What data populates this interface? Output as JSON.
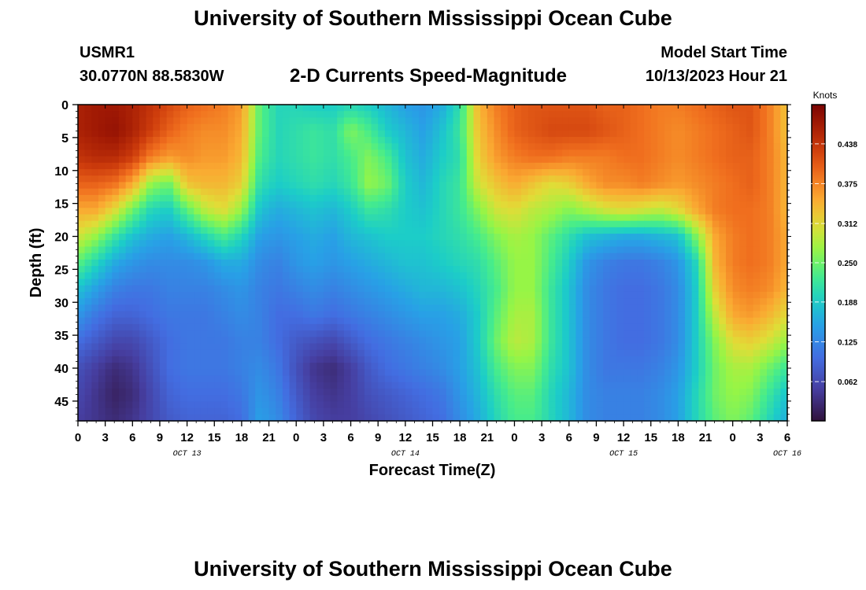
{
  "header": {
    "title": "University of Southern Mississippi Ocean Cube",
    "station_id": "USMR1",
    "station_coords": "30.0770N  88.5830W",
    "plot_title": "2-D Currents Speed-Magnitude",
    "start_label": "Model Start Time",
    "start_value": "10/13/2023 Hour 21"
  },
  "footer": {
    "title": "University of Southern Mississippi Ocean Cube"
  },
  "chart_data": {
    "type": "heatmap",
    "title": "2-D Currents Speed-Magnitude",
    "xlabel": "Forecast Time(Z)",
    "ylabel": "Depth (ft)",
    "colorbar_label": "Knots",
    "x_tick_labels": [
      "0",
      "3",
      "6",
      "9",
      "12",
      "15",
      "18",
      "21",
      "0",
      "3",
      "6",
      "9",
      "12",
      "15",
      "18",
      "21",
      "0",
      "3",
      "6",
      "9",
      "12",
      "15",
      "18",
      "21",
      "0",
      "3",
      "6"
    ],
    "date_labels": [
      {
        "label": "OCT 13",
        "hour": 12
      },
      {
        "label": "OCT 14",
        "hour": 36
      },
      {
        "label": "OCT 15",
        "hour": 60
      },
      {
        "label": "OCT 16",
        "hour": 78
      }
    ],
    "xlim_hours": [
      0,
      78
    ],
    "y_ticks": [
      0,
      5,
      10,
      15,
      20,
      25,
      30,
      35,
      40,
      45
    ],
    "ylim": [
      0,
      48
    ],
    "y_inverted": true,
    "colorbar_ticks": [
      "0.438",
      "0.375",
      "0.312",
      "0.250",
      "0.188",
      "0.125",
      "0.062"
    ],
    "color_range": [
      0,
      0.5
    ],
    "value_grid": {
      "depths_ft": [
        0,
        4,
        8,
        12,
        16,
        20,
        24,
        28,
        32,
        36,
        40,
        44,
        48
      ],
      "hours": [
        0,
        2,
        4,
        6,
        8,
        10,
        12,
        14,
        16,
        18,
        20,
        22,
        24,
        26,
        28,
        30,
        32,
        34,
        36,
        38,
        40,
        42,
        44,
        46,
        48,
        50,
        52,
        54,
        56,
        58,
        60,
        62,
        64,
        66,
        68,
        70,
        72,
        74,
        76,
        78
      ],
      "speeds_knots": [
        [
          0.46,
          0.47,
          0.47,
          0.46,
          0.44,
          0.42,
          0.4,
          0.39,
          0.38,
          0.36,
          0.24,
          0.2,
          0.2,
          0.19,
          0.19,
          0.2,
          0.19,
          0.17,
          0.15,
          0.14,
          0.16,
          0.21,
          0.34,
          0.38,
          0.4,
          0.41,
          0.41,
          0.41,
          0.41,
          0.4,
          0.4,
          0.39,
          0.38,
          0.38,
          0.39,
          0.4,
          0.41,
          0.41,
          0.38,
          0.33
        ],
        [
          0.46,
          0.47,
          0.48,
          0.46,
          0.43,
          0.4,
          0.38,
          0.37,
          0.37,
          0.35,
          0.24,
          0.2,
          0.21,
          0.22,
          0.21,
          0.26,
          0.23,
          0.19,
          0.17,
          0.15,
          0.18,
          0.22,
          0.33,
          0.37,
          0.4,
          0.41,
          0.42,
          0.42,
          0.42,
          0.41,
          0.4,
          0.39,
          0.38,
          0.37,
          0.38,
          0.39,
          0.4,
          0.41,
          0.38,
          0.33
        ],
        [
          0.44,
          0.45,
          0.45,
          0.43,
          0.38,
          0.36,
          0.37,
          0.36,
          0.36,
          0.34,
          0.23,
          0.2,
          0.21,
          0.22,
          0.21,
          0.23,
          0.26,
          0.23,
          0.18,
          0.16,
          0.19,
          0.21,
          0.32,
          0.36,
          0.38,
          0.39,
          0.39,
          0.38,
          0.38,
          0.38,
          0.39,
          0.39,
          0.38,
          0.37,
          0.38,
          0.39,
          0.4,
          0.4,
          0.38,
          0.34
        ],
        [
          0.4,
          0.4,
          0.39,
          0.35,
          0.27,
          0.25,
          0.33,
          0.34,
          0.34,
          0.32,
          0.21,
          0.19,
          0.2,
          0.21,
          0.2,
          0.22,
          0.27,
          0.25,
          0.19,
          0.17,
          0.2,
          0.22,
          0.3,
          0.33,
          0.35,
          0.33,
          0.31,
          0.32,
          0.35,
          0.37,
          0.37,
          0.38,
          0.37,
          0.36,
          0.37,
          0.38,
          0.39,
          0.4,
          0.38,
          0.34
        ],
        [
          0.35,
          0.35,
          0.31,
          0.25,
          0.2,
          0.19,
          0.24,
          0.29,
          0.31,
          0.27,
          0.18,
          0.16,
          0.17,
          0.18,
          0.17,
          0.19,
          0.22,
          0.21,
          0.19,
          0.18,
          0.2,
          0.22,
          0.26,
          0.3,
          0.31,
          0.29,
          0.28,
          0.26,
          0.28,
          0.3,
          0.31,
          0.3,
          0.29,
          0.31,
          0.35,
          0.38,
          0.39,
          0.39,
          0.38,
          0.34
        ],
        [
          0.3,
          0.27,
          0.22,
          0.18,
          0.16,
          0.15,
          0.17,
          0.2,
          0.23,
          0.2,
          0.15,
          0.14,
          0.15,
          0.16,
          0.15,
          0.17,
          0.18,
          0.19,
          0.19,
          0.19,
          0.2,
          0.21,
          0.23,
          0.26,
          0.28,
          0.27,
          0.24,
          0.21,
          0.18,
          0.17,
          0.16,
          0.16,
          0.17,
          0.18,
          0.26,
          0.35,
          0.38,
          0.39,
          0.38,
          0.35
        ],
        [
          0.24,
          0.2,
          0.16,
          0.14,
          0.13,
          0.13,
          0.13,
          0.14,
          0.16,
          0.16,
          0.13,
          0.12,
          0.14,
          0.15,
          0.14,
          0.15,
          0.16,
          0.17,
          0.18,
          0.18,
          0.19,
          0.2,
          0.21,
          0.24,
          0.27,
          0.27,
          0.23,
          0.19,
          0.14,
          0.12,
          0.11,
          0.11,
          0.12,
          0.14,
          0.2,
          0.34,
          0.38,
          0.39,
          0.38,
          0.35
        ],
        [
          0.18,
          0.15,
          0.12,
          0.11,
          0.11,
          0.12,
          0.12,
          0.12,
          0.13,
          0.14,
          0.12,
          0.11,
          0.12,
          0.13,
          0.12,
          0.13,
          0.14,
          0.15,
          0.16,
          0.17,
          0.17,
          0.18,
          0.2,
          0.23,
          0.27,
          0.27,
          0.22,
          0.18,
          0.13,
          0.11,
          0.1,
          0.1,
          0.11,
          0.13,
          0.19,
          0.32,
          0.37,
          0.38,
          0.37,
          0.34
        ],
        [
          0.14,
          0.11,
          0.09,
          0.09,
          0.1,
          0.11,
          0.11,
          0.11,
          0.12,
          0.13,
          0.12,
          0.1,
          0.1,
          0.11,
          0.1,
          0.11,
          0.12,
          0.13,
          0.14,
          0.15,
          0.15,
          0.16,
          0.19,
          0.24,
          0.28,
          0.28,
          0.22,
          0.18,
          0.13,
          0.11,
          0.1,
          0.1,
          0.11,
          0.13,
          0.19,
          0.29,
          0.35,
          0.36,
          0.34,
          0.31
        ],
        [
          0.1,
          0.08,
          0.06,
          0.06,
          0.08,
          0.1,
          0.11,
          0.11,
          0.11,
          0.12,
          0.12,
          0.1,
          0.08,
          0.07,
          0.06,
          0.08,
          0.1,
          0.11,
          0.12,
          0.13,
          0.14,
          0.15,
          0.19,
          0.25,
          0.29,
          0.28,
          0.22,
          0.18,
          0.13,
          0.11,
          0.1,
          0.1,
          0.11,
          0.13,
          0.19,
          0.26,
          0.31,
          0.32,
          0.3,
          0.27
        ],
        [
          0.07,
          0.05,
          0.03,
          0.04,
          0.07,
          0.1,
          0.11,
          0.11,
          0.11,
          0.12,
          0.13,
          0.11,
          0.07,
          0.04,
          0.03,
          0.05,
          0.08,
          0.1,
          0.11,
          0.12,
          0.13,
          0.15,
          0.18,
          0.23,
          0.26,
          0.26,
          0.21,
          0.18,
          0.13,
          0.11,
          0.11,
          0.11,
          0.12,
          0.14,
          0.19,
          0.25,
          0.28,
          0.28,
          0.25,
          0.22
        ],
        [
          0.06,
          0.04,
          0.02,
          0.03,
          0.06,
          0.09,
          0.1,
          0.1,
          0.1,
          0.11,
          0.14,
          0.12,
          0.08,
          0.05,
          0.04,
          0.05,
          0.07,
          0.08,
          0.09,
          0.1,
          0.11,
          0.14,
          0.17,
          0.21,
          0.24,
          0.24,
          0.2,
          0.17,
          0.13,
          0.12,
          0.12,
          0.12,
          0.13,
          0.15,
          0.2,
          0.25,
          0.27,
          0.26,
          0.22,
          0.18
        ],
        [
          0.05,
          0.04,
          0.03,
          0.04,
          0.06,
          0.08,
          0.09,
          0.09,
          0.09,
          0.1,
          0.15,
          0.13,
          0.09,
          0.06,
          0.05,
          0.05,
          0.06,
          0.07,
          0.08,
          0.09,
          0.1,
          0.13,
          0.16,
          0.2,
          0.23,
          0.23,
          0.2,
          0.17,
          0.13,
          0.12,
          0.12,
          0.12,
          0.13,
          0.15,
          0.2,
          0.24,
          0.26,
          0.24,
          0.2,
          0.16
        ]
      ]
    }
  }
}
